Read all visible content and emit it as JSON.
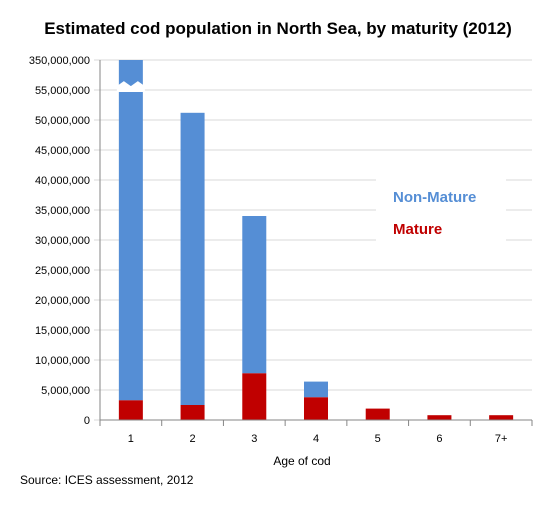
{
  "chart_data": {
    "type": "bar",
    "stacked": true,
    "title": "Estimated cod population in North Sea, by maturity (2012)",
    "xlabel": "Age of cod",
    "ylabel": "",
    "categories": [
      "1",
      "2",
      "3",
      "4",
      "5",
      "6",
      "7+"
    ],
    "series": [
      {
        "name": "Mature",
        "color": "#c00000",
        "values": [
          3300000,
          2500000,
          7800000,
          3800000,
          1900000,
          800000,
          800000
        ]
      },
      {
        "name": "Non-Mature",
        "color": "#558ed5",
        "values": [
          346700000,
          48700000,
          26200000,
          2600000,
          0,
          0,
          0
        ]
      }
    ],
    "ylim": [
      0,
      350000000
    ],
    "axis_break": {
      "after": 55000000,
      "top": 350000000
    },
    "y_ticks": [
      "0",
      "5,000,000",
      "10,000,000",
      "15,000,000",
      "20,000,000",
      "25,000,000",
      "30,000,000",
      "35,000,000",
      "40,000,000",
      "45,000,000",
      "50,000,000",
      "55,000,000",
      "350,000,000"
    ],
    "grid": true,
    "legend": {
      "position": "right",
      "entries": [
        "Non-Mature",
        "Mature"
      ]
    }
  },
  "source": "Source: ICES assessment, 2012"
}
